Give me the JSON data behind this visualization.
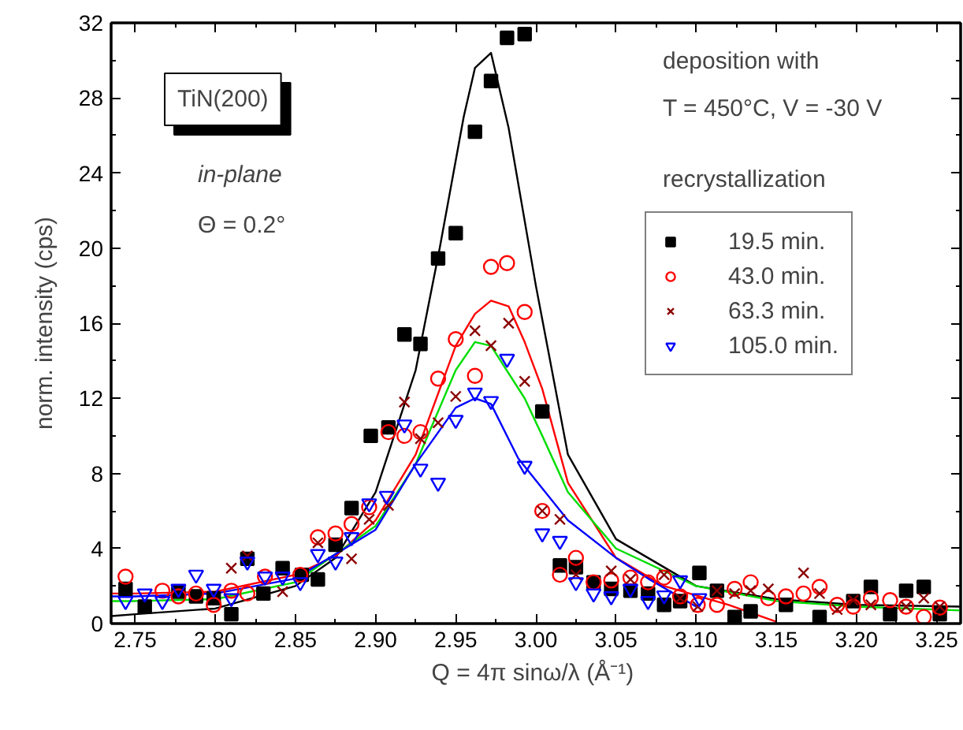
{
  "chart_data": {
    "type": "scatter",
    "xlabel": "Q = 4π sinω/λ  (Å⁻¹)",
    "ylabel": "norm. intensity (cps)",
    "legend_title": "recrystallization",
    "legend": "right",
    "grid": false,
    "xlim": [
      2.735,
      3.265
    ],
    "ylim": [
      0,
      32
    ],
    "xticks": [
      2.75,
      {
        "value": 2.8,
        "label": "2.80"
      },
      2.85,
      {
        "value": 2.9,
        "label": "2.90"
      },
      2.95,
      {
        "value": 3.0,
        "label": "3.00"
      },
      3.05,
      {
        "value": 3.1,
        "label": "3.10"
      },
      3.15,
      {
        "value": 3.2,
        "label": "3.20"
      },
      3.25
    ],
    "yticks": [
      0,
      4,
      8,
      12,
      16,
      20,
      24,
      28,
      32
    ],
    "annotations": [
      "TiN(200)",
      "in-plane",
      "Θ = 0.2°",
      "deposition with",
      "T = 450°C, V = -30 V"
    ],
    "series": [
      {
        "name": "19.5 min.",
        "color": "#000000",
        "marker": "square",
        "x": [
          2.744,
          2.756,
          2.777,
          2.788,
          2.799,
          2.81,
          2.82,
          2.83,
          2.842,
          2.854,
          2.864,
          2.875,
          2.885,
          2.897,
          2.908,
          2.918,
          2.928,
          2.939,
          2.95,
          2.962,
          2.972,
          2.982,
          2.993,
          3.004,
          3.015,
          3.025,
          3.036,
          3.047,
          3.059,
          3.07,
          3.08,
          3.09,
          3.102,
          3.113,
          3.124,
          3.134,
          3.156,
          3.177,
          3.198,
          3.209,
          3.221,
          3.231,
          3.242,
          3.252
        ],
        "values": [
          1.85,
          0.9,
          1.7,
          1.45,
          1.35,
          0.5,
          3.45,
          1.6,
          2.95,
          2.6,
          2.35,
          4.2,
          6.15,
          10.0,
          10.45,
          15.4,
          14.9,
          19.45,
          20.8,
          26.2,
          28.9,
          31.2,
          31.4,
          11.3,
          3.1,
          3.0,
          2.2,
          1.85,
          1.75,
          1.6,
          1.0,
          1.2,
          2.7,
          1.75,
          0.35,
          0.65,
          1.0,
          0.35,
          1.2,
          1.95,
          0.5,
          1.75,
          1.95,
          0.5
        ]
      },
      {
        "name": "43.0 min.",
        "color": "#ff0000",
        "marker": "circle",
        "x": [
          2.744,
          2.767,
          2.777,
          2.788,
          2.799,
          2.81,
          2.82,
          2.831,
          2.853,
          2.864,
          2.875,
          2.885,
          2.896,
          2.908,
          2.918,
          2.928,
          2.939,
          2.95,
          2.962,
          2.972,
          2.982,
          2.993,
          3.004,
          3.015,
          3.025,
          3.036,
          3.047,
          3.059,
          3.07,
          3.08,
          3.09,
          3.101,
          3.113,
          3.124,
          3.134,
          3.145,
          3.156,
          3.167,
          3.177,
          3.188,
          3.198,
          3.209,
          3.221,
          3.231,
          3.242,
          3.252
        ],
        "values": [
          2.5,
          1.75,
          1.45,
          1.6,
          1.0,
          1.75,
          1.6,
          2.5,
          2.6,
          4.6,
          4.8,
          5.3,
          6.2,
          10.2,
          10.0,
          10.2,
          13.05,
          15.15,
          13.2,
          19.0,
          19.2,
          16.6,
          6.0,
          2.6,
          3.5,
          2.2,
          2.3,
          2.45,
          2.2,
          2.45,
          1.45,
          1.0,
          1.0,
          1.85,
          2.2,
          1.35,
          1.45,
          1.6,
          1.95,
          1.0,
          0.9,
          1.35,
          1.25,
          0.9,
          0.35,
          0.85
        ]
      },
      {
        "name": "63.3 min.",
        "color": "#8b0000",
        "marker": "cross",
        "x": [
          2.81,
          2.82,
          2.842,
          2.864,
          2.885,
          2.896,
          2.908,
          2.918,
          2.928,
          2.939,
          2.95,
          2.962,
          2.972,
          2.983,
          2.993,
          3.004,
          3.015,
          3.025,
          3.047,
          3.059,
          3.08,
          3.09,
          3.101,
          3.113,
          3.124,
          3.134,
          3.145,
          3.167,
          3.177,
          3.188,
          3.198,
          3.209,
          3.231,
          3.242,
          3.252
        ],
        "values": [
          2.95,
          3.6,
          1.7,
          4.3,
          3.45,
          5.55,
          6.3,
          11.8,
          9.85,
          10.7,
          12.1,
          15.6,
          14.8,
          16.0,
          12.9,
          6.0,
          5.55,
          2.6,
          2.8,
          2.35,
          2.6,
          1.35,
          0.9,
          1.75,
          1.6,
          1.75,
          1.85,
          2.7,
          1.6,
          0.75,
          1.25,
          1.0,
          0.9,
          1.35,
          0.9
        ]
      },
      {
        "name": "105.0 min.",
        "color": "#0000ff",
        "marker": "triangle",
        "x": [
          2.744,
          2.756,
          2.767,
          2.777,
          2.788,
          2.799,
          2.81,
          2.82,
          2.831,
          2.842,
          2.853,
          2.864,
          2.875,
          2.885,
          2.896,
          2.907,
          2.918,
          2.928,
          2.939,
          2.95,
          2.962,
          2.972,
          2.982,
          2.993,
          3.004,
          3.015,
          3.025,
          3.036,
          3.047,
          3.059,
          3.07,
          3.08,
          3.09,
          3.102
        ],
        "values": [
          1.2,
          1.6,
          1.2,
          1.85,
          2.6,
          1.85,
          1.35,
          3.3,
          2.5,
          2.5,
          2.2,
          3.7,
          3.3,
          4.6,
          6.4,
          6.8,
          10.6,
          8.25,
          7.5,
          10.85,
          12.3,
          11.85,
          14.1,
          8.4,
          4.8,
          4.4,
          2.2,
          1.6,
          1.45,
          1.85,
          1.2,
          1.5,
          2.3,
          1.35
        ]
      },
      {
        "type": "line",
        "color": "#000000",
        "x": [
          2.735,
          2.75,
          2.8,
          2.85,
          2.875,
          2.9,
          2.925,
          2.94,
          2.955,
          2.962,
          2.972,
          2.983,
          3.0,
          3.02,
          3.05,
          3.1,
          3.15,
          3.2,
          3.265
        ],
        "values": [
          0.4,
          0.5,
          0.8,
          2.0,
          3.5,
          7.0,
          13.5,
          20.0,
          27.0,
          29.6,
          30.4,
          26.4,
          18.0,
          9.0,
          4.5,
          2.0,
          1.3,
          1.0,
          0.9
        ]
      },
      {
        "type": "line",
        "color": "#ff0000",
        "x": [
          2.735,
          2.75,
          2.8,
          2.85,
          2.875,
          2.9,
          2.925,
          2.95,
          2.962,
          2.972,
          2.983,
          2.993,
          3.004,
          3.02,
          3.05,
          3.08,
          3.12,
          3.15
        ],
        "values": [
          1.6,
          1.6,
          1.7,
          2.6,
          3.6,
          5.5,
          9.0,
          14.8,
          16.5,
          17.2,
          16.9,
          15.0,
          12.5,
          7.5,
          3.5,
          2.0,
          1.0,
          0.1
        ]
      },
      {
        "type": "line",
        "color": "#00dd00",
        "x": [
          2.735,
          2.75,
          2.8,
          2.85,
          2.9,
          2.925,
          2.95,
          2.962,
          2.972,
          2.993,
          3.004,
          3.02,
          3.05,
          3.1,
          3.15,
          3.2,
          3.265
        ],
        "values": [
          1.2,
          1.2,
          1.3,
          2.2,
          5.2,
          8.5,
          13.5,
          15.0,
          14.8,
          12.0,
          10.0,
          7.0,
          4.0,
          2.0,
          1.2,
          0.9,
          0.7
        ]
      },
      {
        "type": "line",
        "color": "#0000ff",
        "x": [
          2.735,
          2.75,
          2.8,
          2.85,
          2.9,
          2.925,
          2.95,
          2.962,
          2.972,
          2.989,
          3.02,
          3.05,
          3.07,
          3.1
        ],
        "values": [
          1.45,
          1.45,
          1.6,
          2.4,
          5.0,
          8.5,
          11.5,
          12.0,
          11.7,
          8.8,
          5.5,
          3.5,
          2.4,
          0.9
        ]
      }
    ]
  }
}
